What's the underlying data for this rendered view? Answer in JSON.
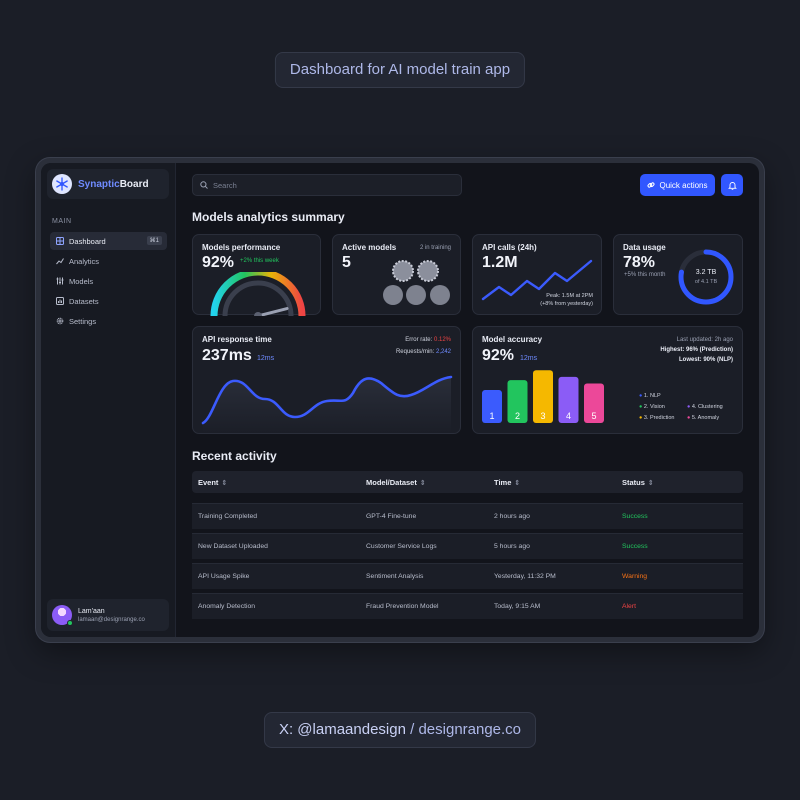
{
  "header_pill": "Dashboard for AI model train app",
  "footer_pill": {
    "handle": "X: @lamaandesign",
    "separator": " / ",
    "site": "designrange.co"
  },
  "brand": {
    "part1": "Synaptic",
    "part2": "Board",
    "logo_icon": "snowflake-icon"
  },
  "sidebar": {
    "section_label": "MAIN",
    "items": [
      {
        "label": "Dashboard",
        "icon": "grid-icon",
        "shortcut": "⌘1",
        "active": true
      },
      {
        "label": "Analytics",
        "icon": "chart-icon"
      },
      {
        "label": "Models",
        "icon": "sliders-icon"
      },
      {
        "label": "Datasets",
        "icon": "bar-chart-icon"
      },
      {
        "label": "Settings",
        "icon": "gear-icon"
      }
    ]
  },
  "user": {
    "name": "Lam'aan",
    "email": "lamaan@designrange.co"
  },
  "search": {
    "placeholder": "Search"
  },
  "quick_actions_label": "Quick actions",
  "summary_title": "Models analytics summary",
  "cards": {
    "performance": {
      "title": "Models performance",
      "value": "92%",
      "delta": "+2% this week",
      "gauge_fraction": 0.92
    },
    "active_models": {
      "title": "Active models",
      "value": "5",
      "note": "2 in training"
    },
    "api_calls": {
      "title": "API calls (24h)",
      "value": "1.2M",
      "peak": "Peak: 1.5M at 2PM",
      "peak_note": "(+8% from yesterday)"
    },
    "data_usage": {
      "title": "Data usage",
      "value": "78%",
      "note": "+5% this month",
      "used": "3.2 TB",
      "total": "of 4.1 TB",
      "fraction": 0.78
    },
    "api_response": {
      "title": "API response time",
      "value": "237ms",
      "delta": "12ms",
      "error_label": "Error rate: ",
      "error_value": "0.12%",
      "rpm_label": "Requests/min: ",
      "rpm_value": "2,242"
    },
    "accuracy": {
      "title": "Model accuracy",
      "value": "92%",
      "delta": "12ms",
      "updated": "Last updated: 2h ago",
      "highest": "Highest: 96% (Prediction)",
      "lowest": "Lowest: 90% (NLP)",
      "legend": [
        "1. NLP",
        "2. Vision",
        "3. Prediction",
        "4. Clustering",
        "5. Anomaly"
      ]
    }
  },
  "chart_data": [
    {
      "type": "bar",
      "title": "Model accuracy",
      "categories": [
        "1",
        "2",
        "3",
        "4",
        "5"
      ],
      "values": [
        90,
        93,
        96,
        94,
        92
      ],
      "colors": [
        "#3b5bfd",
        "#22c55e",
        "#f5b800",
        "#8b5cf6",
        "#ec4899"
      ],
      "ylim": [
        80,
        97
      ]
    }
  ],
  "activity": {
    "title": "Recent activity",
    "columns": [
      "Event",
      "Model/Dataset",
      "Time",
      "Status"
    ],
    "rows": [
      {
        "event": "Training Completed",
        "model": "GPT-4 Fine-tune",
        "time": "2 hours ago",
        "status": "Success",
        "status_color": "#22c55e"
      },
      {
        "event": "New Dataset Uploaded",
        "model": "Customer Service Logs",
        "time": "5 hours ago",
        "status": "Success",
        "status_color": "#22c55e"
      },
      {
        "event": "API Usage Spike",
        "model": "Sentiment Analysis",
        "time": "Yesterday, 11:32 PM",
        "status": "Warning",
        "status_color": "#f97316"
      },
      {
        "event": "Anomaly Detection",
        "model": "Fraud Prevention Model",
        "time": "Today, 9:15 AM",
        "status": "Alert",
        "status_color": "#ef4444"
      }
    ]
  }
}
